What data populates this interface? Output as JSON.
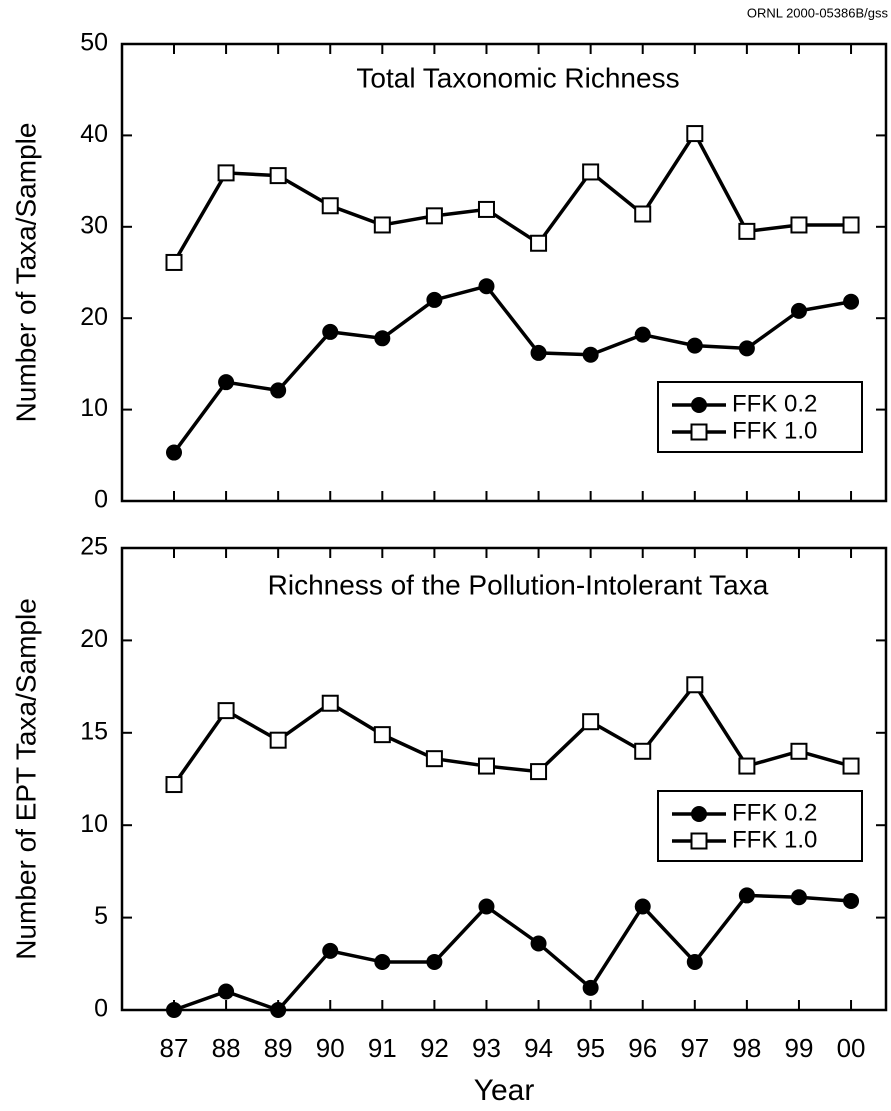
{
  "figure_id": "ORNL 2000-05386B/gss",
  "chart_data": [
    {
      "type": "line",
      "title": "Total Taxonomic Richness",
      "y_label": "Number of Taxa/Sample",
      "ylim": [
        0,
        50
      ],
      "yticks": [
        0,
        10,
        20,
        30,
        40,
        50
      ],
      "legend": "right",
      "series": [
        {
          "name": "FFK 0.2",
          "color": "#000000",
          "marker": "circle",
          "values": [
            5.3,
            13.0,
            12.1,
            18.5,
            17.8,
            22.0,
            23.5,
            16.2,
            16.0,
            18.2,
            17.0,
            16.7,
            20.8,
            21.8
          ]
        },
        {
          "name": "FFK 1.0",
          "color": "#000000",
          "marker": "square",
          "values": [
            26.1,
            35.9,
            35.6,
            32.3,
            30.2,
            31.2,
            31.9,
            28.2,
            36.0,
            31.4,
            40.2,
            29.5,
            30.2,
            30.2
          ]
        }
      ]
    },
    {
      "type": "line",
      "title": "Richness of the Pollution-Intolerant Taxa",
      "y_label": "Number of EPT Taxa/Sample",
      "x_label": "Year",
      "categories": [
        "87",
        "88",
        "89",
        "90",
        "91",
        "92",
        "93",
        "94",
        "95",
        "96",
        "97",
        "98",
        "99",
        "00"
      ],
      "ylim": [
        0,
        25
      ],
      "yticks": [
        0,
        5,
        10,
        15,
        20,
        25
      ],
      "legend": "right",
      "series": [
        {
          "name": "FFK 0.2",
          "color": "#000000",
          "marker": "circle",
          "values": [
            0,
            1.0,
            0,
            3.2,
            2.6,
            2.6,
            5.6,
            3.6,
            1.2,
            5.6,
            2.6,
            6.2,
            6.1,
            5.9
          ]
        },
        {
          "name": "FFK 1.0",
          "color": "#000000",
          "marker": "square",
          "values": [
            12.2,
            16.2,
            14.6,
            16.6,
            14.9,
            13.6,
            13.2,
            12.9,
            15.6,
            14.0,
            17.6,
            13.2,
            14.0,
            13.2
          ]
        }
      ]
    }
  ]
}
